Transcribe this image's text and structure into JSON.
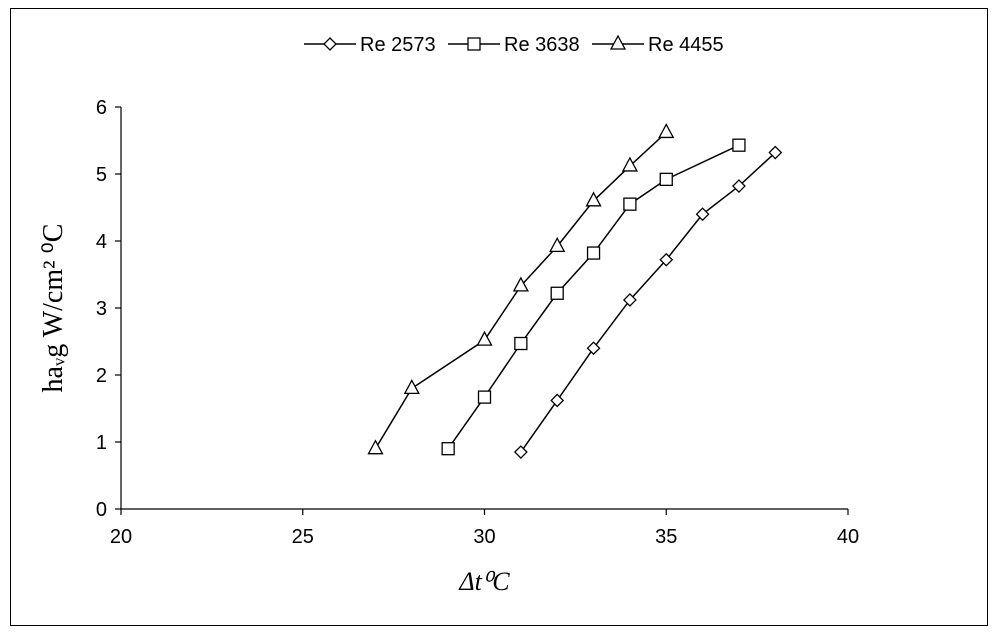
{
  "chart_data": {
    "type": "line",
    "xlabel": "Δt⁰C",
    "ylabel": "haᵥg W/cm² ⁰C",
    "xlim": [
      20,
      40
    ],
    "ylim": [
      0,
      6
    ],
    "x_ticks": [
      20,
      25,
      30,
      35,
      40
    ],
    "y_ticks": [
      0,
      1,
      2,
      3,
      4,
      5,
      6
    ],
    "grid": false,
    "legend_position": "top",
    "series": [
      {
        "name": "Re 2573",
        "marker": "diamond",
        "x": [
          31,
          32,
          33,
          34,
          35,
          36,
          37,
          38
        ],
        "y": [
          0.85,
          1.62,
          2.4,
          3.12,
          3.72,
          4.4,
          4.82,
          5.32
        ]
      },
      {
        "name": "Re 3638",
        "marker": "square",
        "x": [
          29,
          30,
          31,
          32,
          33,
          34,
          35,
          37
        ],
        "y": [
          0.9,
          1.67,
          2.47,
          3.22,
          3.82,
          4.55,
          4.92,
          5.43
        ]
      },
      {
        "name": "Re 4455",
        "marker": "triangle",
        "x": [
          27,
          28,
          30,
          31,
          32,
          33,
          34,
          35
        ],
        "y": [
          0.9,
          1.8,
          2.52,
          3.33,
          3.92,
          4.6,
          5.12,
          5.62
        ]
      }
    ]
  },
  "colors": {
    "line": "#000000",
    "marker_fill": "#ffffff",
    "axis": "#000000"
  }
}
